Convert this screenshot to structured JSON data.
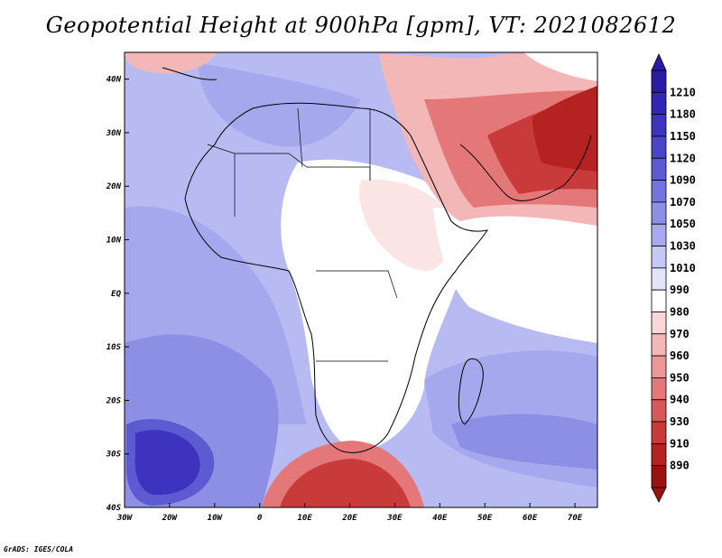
{
  "title": "Geopotential Height at 900hPa [gpm], VT: 2021082612",
  "credit": "GrADS: IGES/COLA",
  "map": {
    "lon_labels": [
      "30W",
      "20W",
      "10W",
      "0",
      "10E",
      "20E",
      "30E",
      "40E",
      "50E",
      "60E",
      "70E"
    ],
    "lat_labels": [
      "40N",
      "30N",
      "20N",
      "10N",
      "EQ",
      "10S",
      "20S",
      "30S",
      "40S"
    ],
    "lon_range": [
      -30,
      75
    ],
    "lat_range": [
      -40,
      45
    ]
  },
  "colorbar": {
    "labels": [
      "1210",
      "1180",
      "1150",
      "1120",
      "1090",
      "1070",
      "1050",
      "1030",
      "1010",
      "990",
      "980",
      "970",
      "960",
      "950",
      "940",
      "930",
      "910",
      "890"
    ],
    "colors": [
      "#2b1aa6",
      "#3325b4",
      "#3d33be",
      "#4a44c8",
      "#5e5ad2",
      "#7574dc",
      "#8d8fe5",
      "#a8aaee",
      "#c6c8f6",
      "#e4e5fb",
      "#ffffff",
      "#f9d7d7",
      "#f3b7b7",
      "#ec9797",
      "#e47777",
      "#d85757",
      "#c93a3a",
      "#b42222",
      "#9b1111"
    ]
  }
}
